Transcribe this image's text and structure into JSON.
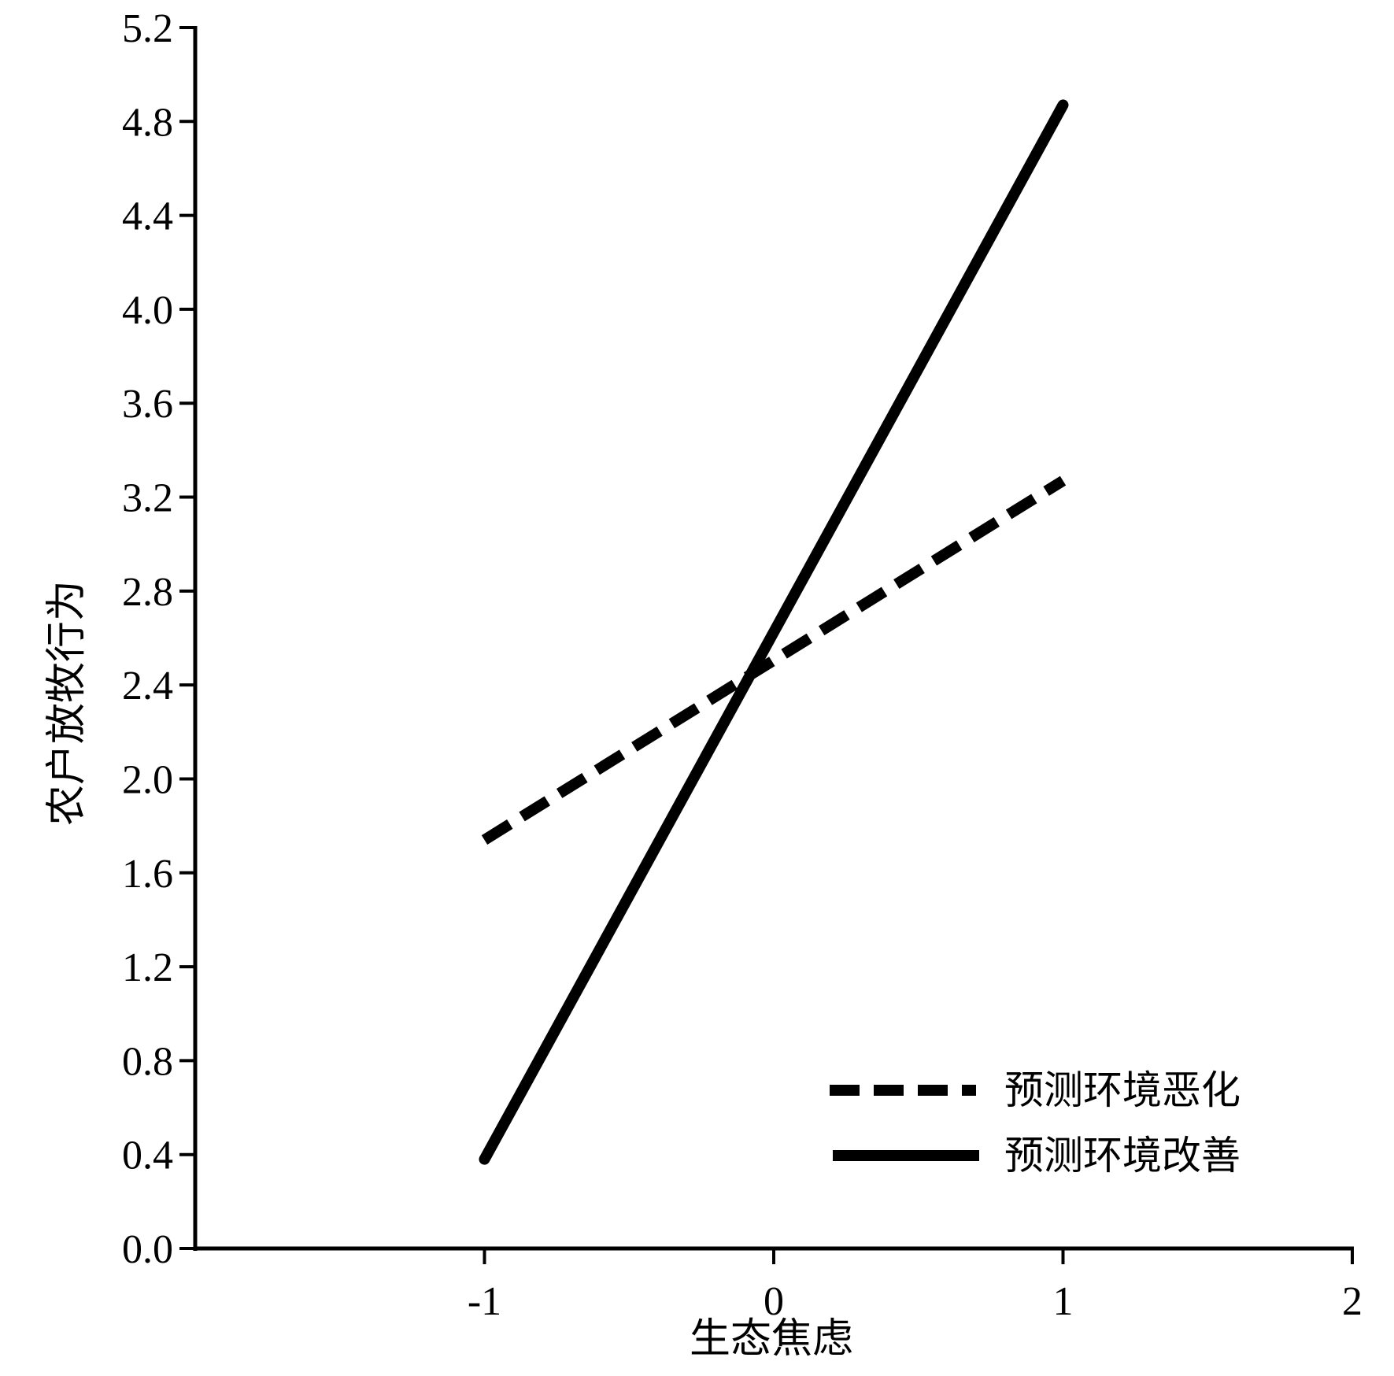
{
  "chart_data": {
    "type": "line",
    "title": "",
    "xlabel": "生态焦虑",
    "ylabel": "农户放牧行为",
    "xlim": [
      -2,
      2
    ],
    "ylim": [
      0,
      5.2
    ],
    "x_ticks": [
      -1,
      0,
      1,
      2
    ],
    "x_tick_labels": [
      "-1",
      "0",
      "1",
      "2"
    ],
    "y_ticks": [
      0,
      0.4,
      0.8,
      1.2,
      1.6,
      2.0,
      2.4,
      2.8,
      3.2,
      3.6,
      4.0,
      4.4,
      4.8,
      5.2
    ],
    "y_tick_labels": [
      "0.0",
      "0.4",
      "0.8",
      "1.2",
      "1.6",
      "2.0",
      "2.4",
      "2.8",
      "3.2",
      "3.6",
      "4.0",
      "4.4",
      "4.8",
      "5.2"
    ],
    "grid": false,
    "legend_position": "bottom-right",
    "series": [
      {
        "name": "预测环境恶化",
        "style": "dashed",
        "color": "#000000",
        "x": [
          -1,
          1
        ],
        "y": [
          1.74,
          3.27
        ]
      },
      {
        "name": "预测环境改善",
        "style": "solid",
        "color": "#000000",
        "x": [
          -1,
          1
        ],
        "y": [
          0.38,
          4.87
        ]
      }
    ]
  }
}
